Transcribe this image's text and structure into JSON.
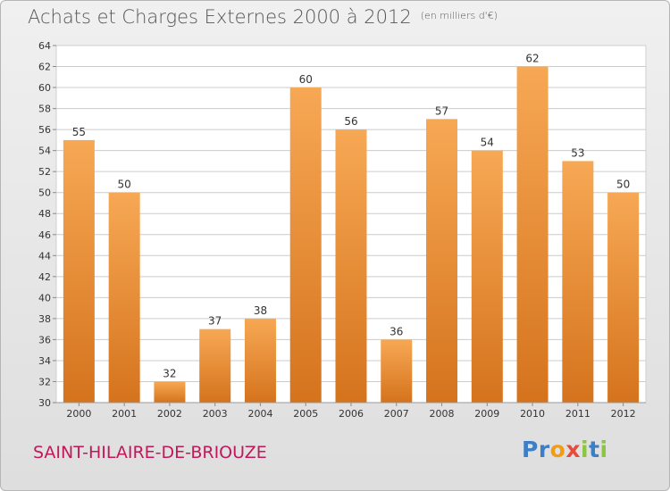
{
  "header": {
    "title": "Achats et Charges Externes 2000 à 2012",
    "unit": "(en milliers d'€)"
  },
  "commune": "SAINT-HILAIRE-DE-BRIOUZE",
  "logo": {
    "letters": [
      {
        "ch": "P",
        "color": "#3b7fc4"
      },
      {
        "ch": "r",
        "color": "#3b7fc4"
      },
      {
        "ch": "o",
        "color": "#f39c12"
      },
      {
        "ch": "x",
        "color": "#e64c3c"
      },
      {
        "ch": "i",
        "color": "#8cc63f"
      },
      {
        "ch": "t",
        "color": "#3b7fc4"
      },
      {
        "ch": "i",
        "color": "#8cc63f"
      }
    ]
  },
  "colors": {
    "bar_top": "#f7a854",
    "bar_bottom": "#d5731d",
    "grid": "#cccccc",
    "axis_text": "#333333"
  },
  "chart_data": {
    "type": "bar",
    "title": "Achats et Charges Externes 2000 à 2012",
    "subtitle": "(en milliers d'€)",
    "categories": [
      "2000",
      "2001",
      "2002",
      "2003",
      "2004",
      "2005",
      "2006",
      "2007",
      "2008",
      "2009",
      "2010",
      "2011",
      "2012"
    ],
    "values": [
      55,
      50,
      32,
      37,
      38,
      60,
      56,
      36,
      57,
      54,
      62,
      53,
      50
    ],
    "ylim": [
      30,
      64
    ],
    "yticks": [
      30,
      32,
      34,
      36,
      38,
      40,
      42,
      44,
      46,
      48,
      50,
      52,
      54,
      56,
      58,
      60,
      62,
      64
    ],
    "grid": true,
    "data_labels": true
  }
}
